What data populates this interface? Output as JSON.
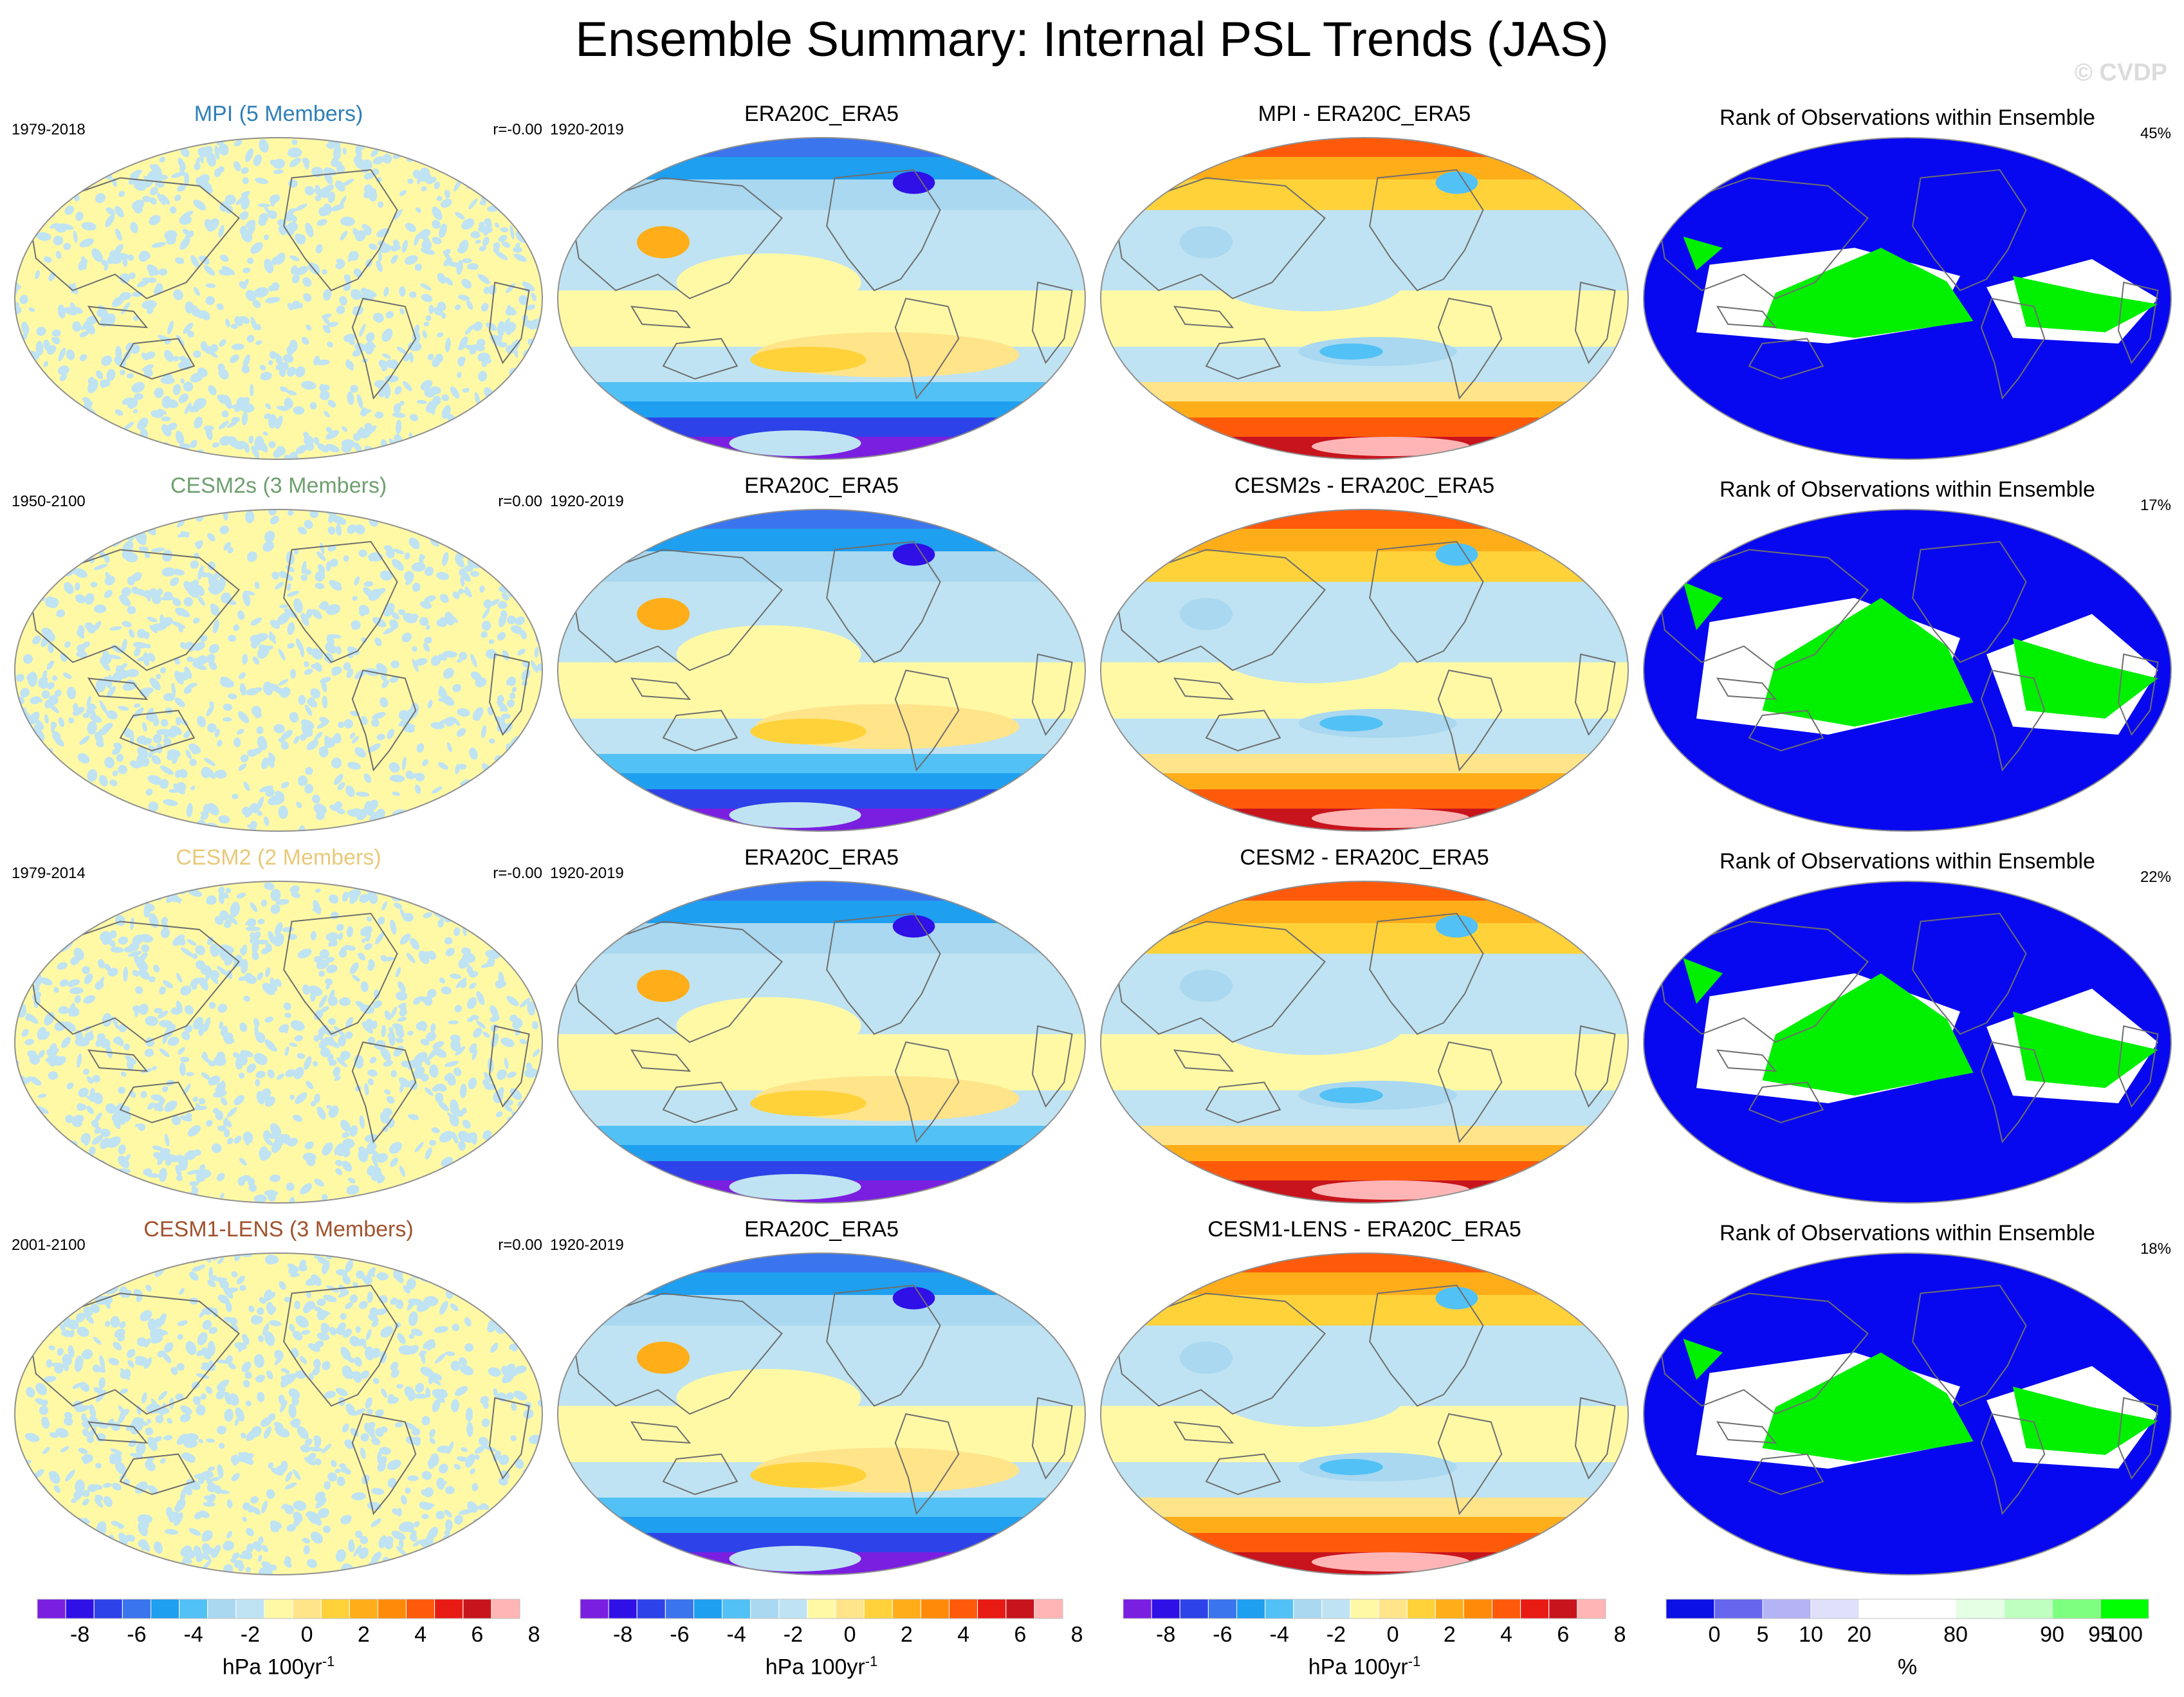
{
  "title": "Ensemble Summary: Internal PSL Trends (JAS)",
  "watermark": "© CVDP",
  "colors": {
    "psl_levels": [
      "#7a1fe0",
      "#2f10e6",
      "#2d42e8",
      "#3a75ee",
      "#1e9ff0",
      "#52c1f5",
      "#a9d8f0",
      "#bfe3f2",
      "#fff9a6",
      "#ffe48a",
      "#ffd23a",
      "#ffae1a",
      "#ff8a0a",
      "#ff5a0a",
      "#e81a14",
      "#c8141c",
      "#ffb5b5"
    ],
    "rank_levels": [
      "#0b10e6",
      "#6666ee",
      "#b3b3f5",
      "#e0e0fb",
      "#ffffff",
      "#ffffff",
      "#e4ffe4",
      "#bfffbf",
      "#7fff7f",
      "#00ff00"
    ],
    "ocean_blue": "#0808f0",
    "rank_green": "#00f000",
    "coast": "#6e6e6e"
  },
  "rows": [
    {
      "model_title": "MPI (5 Members)",
      "model_title_color": "#2f7fb6",
      "period": "1979-2018",
      "r_text": "r=-0.00",
      "obs_title": "ERA20C_ERA5",
      "obs_period": "1920-2019",
      "diff_title": "MPI - ERA20C_ERA5",
      "rank_title": "Rank of Observations within Ensemble",
      "rank_pct": "45%"
    },
    {
      "model_title": "CESM2s (3 Members)",
      "model_title_color": "#6f9f6f",
      "period": "1950-2100",
      "r_text": "r=0.00",
      "obs_title": "ERA20C_ERA5",
      "obs_period": "1920-2019",
      "diff_title": "CESM2s - ERA20C_ERA5",
      "rank_title": "Rank of Observations within Ensemble",
      "rank_pct": "17%"
    },
    {
      "model_title": "CESM2 (2 Members)",
      "model_title_color": "#e8c97a",
      "period": "1979-2014",
      "r_text": "r=-0.00",
      "obs_title": "ERA20C_ERA5",
      "obs_period": "1920-2019",
      "diff_title": "CESM2 - ERA20C_ERA5",
      "rank_title": "Rank of Observations within Ensemble",
      "rank_pct": "22%"
    },
    {
      "model_title": "CESM1-LENS (3 Members)",
      "model_title_color": "#a0522d",
      "period": "2001-2100",
      "r_text": "r=0.00",
      "obs_title": "ERA20C_ERA5",
      "obs_period": "1920-2019",
      "diff_title": "CESM1-LENS - ERA20C_ERA5",
      "rank_title": "Rank of Observations within Ensemble",
      "rank_pct": "18%"
    }
  ],
  "colorbars": [
    {
      "ticks": [
        "-8",
        "-6",
        "-4",
        "-2",
        "0",
        "2",
        "4",
        "6",
        "8"
      ],
      "units": "hPa 100yr",
      "units_sup": "-1"
    },
    {
      "ticks": [
        "-8",
        "-6",
        "-4",
        "-2",
        "0",
        "2",
        "4",
        "6",
        "8"
      ],
      "units": "hPa 100yr",
      "units_sup": "-1"
    },
    {
      "ticks": [
        "-8",
        "-6",
        "-4",
        "-2",
        "0",
        "2",
        "4",
        "6",
        "8"
      ],
      "units": "hPa 100yr",
      "units_sup": "-1"
    },
    {
      "ticks": [
        "0",
        "5",
        "10",
        "20",
        "80",
        "90",
        "95",
        "100"
      ],
      "units": "%",
      "units_sup": ""
    }
  ]
}
